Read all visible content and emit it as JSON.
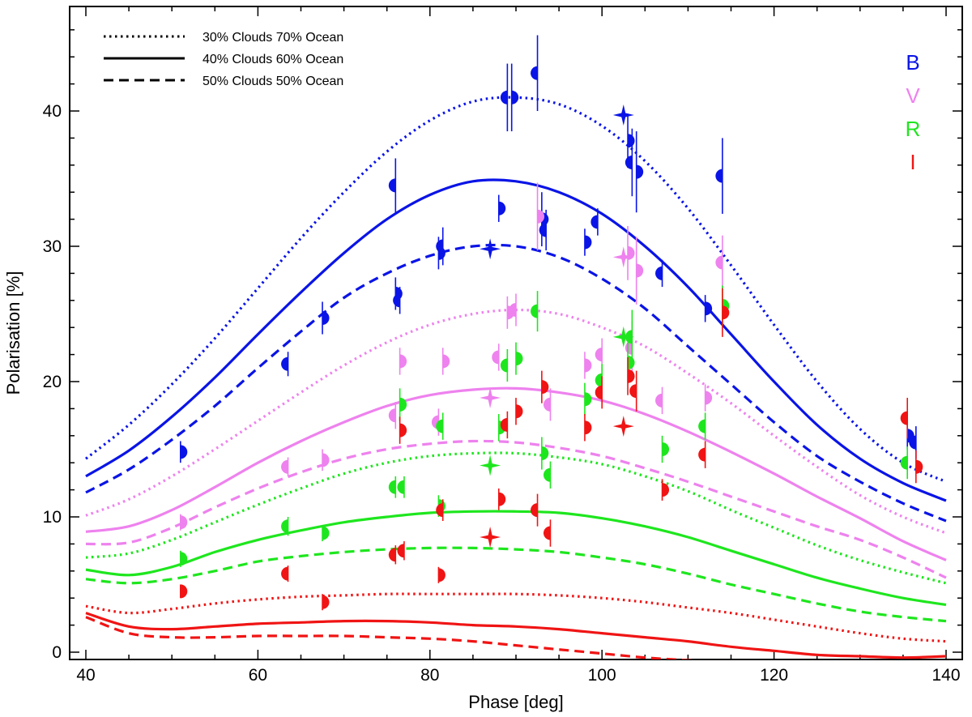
{
  "chart_data": {
    "type": "scatter",
    "xlabel": "Phase [deg]",
    "ylabel": "Polarisation [%]",
    "xlim": [
      38,
      142
    ],
    "ylim": [
      -0.5,
      47
    ],
    "xticks": [
      40,
      60,
      80,
      100,
      120,
      140
    ],
    "yticks": [
      0,
      10,
      20,
      30,
      40
    ],
    "legend": {
      "position": "top-left",
      "entries": [
        {
          "label": "30% Clouds 70% Ocean",
          "style": "dotted"
        },
        {
          "label": "40% Clouds 60% Ocean",
          "style": "solid"
        },
        {
          "label": "50% Clouds 50% Ocean",
          "style": "dashed"
        }
      ]
    },
    "bands": [
      {
        "name": "B",
        "color": "#0a14e6"
      },
      {
        "name": "V",
        "color": "#ee82ee"
      },
      {
        "name": "R",
        "color": "#1ee61e"
      },
      {
        "name": "I",
        "color": "#f01414"
      }
    ],
    "model_x": [
      40,
      45,
      50,
      55,
      60,
      65,
      70,
      75,
      80,
      85,
      90,
      95,
      100,
      105,
      110,
      115,
      120,
      125,
      130,
      135,
      140
    ],
    "models": [
      {
        "band": "B",
        "style": "dotted",
        "y": [
          14.3,
          16.8,
          19.8,
          23.2,
          26.9,
          30.6,
          34.0,
          37.0,
          39.3,
          40.7,
          41.0,
          40.5,
          38.9,
          36.3,
          32.8,
          28.6,
          24.2,
          20.0,
          16.5,
          14.0,
          12.6
        ]
      },
      {
        "band": "B",
        "style": "solid",
        "y": [
          13.0,
          14.9,
          17.4,
          20.3,
          23.5,
          26.6,
          29.5,
          32.0,
          33.8,
          34.8,
          34.8,
          34.0,
          32.4,
          30.0,
          27.0,
          23.5,
          20.0,
          16.8,
          14.3,
          12.5,
          11.2
        ]
      },
      {
        "band": "B",
        "style": "dashed",
        "y": [
          11.8,
          13.5,
          15.7,
          18.2,
          21.0,
          23.7,
          26.2,
          28.0,
          29.3,
          30.0,
          30.0,
          29.2,
          27.6,
          25.4,
          22.6,
          19.8,
          17.0,
          14.5,
          12.6,
          11.0,
          9.7
        ]
      },
      {
        "band": "V",
        "style": "dotted",
        "y": [
          10.1,
          11.3,
          13.0,
          15.0,
          17.1,
          19.2,
          21.2,
          22.9,
          24.2,
          25.0,
          25.3,
          25.0,
          24.0,
          22.6,
          20.6,
          18.4,
          16.0,
          13.7,
          11.6,
          10.0,
          8.8
        ]
      },
      {
        "band": "V",
        "style": "solid",
        "y": [
          8.9,
          9.3,
          10.5,
          12.2,
          14.0,
          15.6,
          17.0,
          18.2,
          19.0,
          19.4,
          19.5,
          19.2,
          18.6,
          17.6,
          16.3,
          14.8,
          13.2,
          11.5,
          9.9,
          8.2,
          6.8
        ]
      },
      {
        "band": "V",
        "style": "dashed",
        "y": [
          8.0,
          8.1,
          9.2,
          10.7,
          12.1,
          13.3,
          14.3,
          15.0,
          15.4,
          15.6,
          15.5,
          15.1,
          14.5,
          13.6,
          12.6,
          11.5,
          10.4,
          9.3,
          8.3,
          7.0,
          5.5
        ]
      },
      {
        "band": "R",
        "style": "dotted",
        "y": [
          7.0,
          7.3,
          8.3,
          9.6,
          10.9,
          12.1,
          13.2,
          14.0,
          14.5,
          14.7,
          14.7,
          14.4,
          13.9,
          13.0,
          11.9,
          10.5,
          9.2,
          7.9,
          6.8,
          5.9,
          5.1
        ]
      },
      {
        "band": "R",
        "style": "solid",
        "y": [
          6.1,
          5.7,
          6.3,
          7.4,
          8.3,
          9.0,
          9.6,
          10.0,
          10.3,
          10.4,
          10.4,
          10.3,
          9.9,
          9.3,
          8.5,
          7.5,
          6.5,
          5.5,
          4.7,
          4.0,
          3.5
        ]
      },
      {
        "band": "R",
        "style": "dashed",
        "y": [
          5.4,
          5.1,
          5.4,
          6.0,
          6.7,
          7.1,
          7.4,
          7.6,
          7.7,
          7.7,
          7.6,
          7.4,
          7.0,
          6.5,
          5.8,
          5.0,
          4.3,
          3.6,
          3.0,
          2.6,
          2.3
        ]
      },
      {
        "band": "I",
        "style": "dotted",
        "y": [
          3.4,
          2.9,
          3.2,
          3.6,
          3.9,
          4.1,
          4.2,
          4.3,
          4.3,
          4.3,
          4.3,
          4.2,
          4.0,
          3.7,
          3.3,
          2.9,
          2.4,
          1.9,
          1.4,
          1.0,
          0.8
        ]
      },
      {
        "band": "I",
        "style": "solid",
        "y": [
          2.9,
          1.9,
          1.7,
          1.9,
          2.1,
          2.2,
          2.3,
          2.3,
          2.2,
          2.0,
          1.9,
          1.7,
          1.4,
          1.1,
          0.8,
          0.4,
          0.1,
          -0.2,
          -0.3,
          -0.4,
          -0.3
        ]
      },
      {
        "band": "I",
        "style": "dashed",
        "y": [
          2.6,
          1.4,
          1.1,
          1.1,
          1.2,
          1.2,
          1.2,
          1.1,
          1.0,
          0.8,
          0.5,
          0.2,
          -0.1,
          -0.4,
          -0.6,
          -0.8,
          -0.9,
          -1.0,
          -1.0,
          -1.0,
          -1.0
        ]
      }
    ],
    "observations": [
      {
        "band": "B",
        "points": [
          [
            51,
            14.8,
            0.8
          ],
          [
            63.5,
            21.3,
            0.9
          ],
          [
            67.5,
            24.7,
            1.2
          ],
          [
            76,
            34.5,
            2.0
          ],
          [
            76,
            26.5,
            1.2
          ],
          [
            76.5,
            26.0,
            1.0
          ],
          [
            81,
            29.5,
            1.2
          ],
          [
            81.5,
            30.0,
            1.4
          ],
          [
            88,
            32.8,
            1.0
          ],
          [
            89,
            41.0,
            2.5
          ],
          [
            89.5,
            41.0,
            2.5
          ],
          [
            92.5,
            42.8,
            2.8
          ],
          [
            93,
            32.0,
            2.0
          ],
          [
            93.5,
            31.2,
            1.5
          ],
          [
            98,
            30.3,
            1.0
          ],
          [
            99.5,
            31.8,
            1.0
          ],
          [
            103,
            37.8,
            2.0
          ],
          [
            103.5,
            36.2,
            2.5
          ],
          [
            104,
            35.5,
            3.0
          ],
          [
            107,
            28.0,
            1.0
          ],
          [
            112,
            25.4,
            1.0
          ],
          [
            114,
            35.2,
            2.8
          ],
          [
            135.5,
            16.0,
            1.0
          ],
          [
            136.5,
            15.5,
            1.2
          ]
        ],
        "stars": [
          [
            87,
            29.8
          ],
          [
            102.5,
            39.7
          ]
        ]
      },
      {
        "band": "V",
        "points": [
          [
            51,
            9.6,
            0.6
          ],
          [
            63.5,
            13.7,
            0.7
          ],
          [
            67.5,
            14.2,
            0.8
          ],
          [
            76,
            17.5,
            1.0
          ],
          [
            76.5,
            21.5,
            1.0
          ],
          [
            81,
            17.0,
            1.0
          ],
          [
            81.5,
            21.5,
            1.0
          ],
          [
            88,
            21.8,
            1.0
          ],
          [
            89,
            25.1,
            1.2
          ],
          [
            90,
            25.3,
            1.2
          ],
          [
            92.5,
            32.2,
            2.5
          ],
          [
            94,
            18.3,
            1.2
          ],
          [
            98,
            21.2,
            1.0
          ],
          [
            100,
            22.0,
            1.2
          ],
          [
            103,
            29.5,
            2.0
          ],
          [
            103.5,
            22.5,
            2.0
          ],
          [
            104,
            28.2,
            2.5
          ],
          [
            107,
            18.6,
            1.0
          ],
          [
            112,
            18.8,
            1.0
          ],
          [
            114,
            28.8,
            2.0
          ]
        ],
        "stars": [
          [
            87,
            18.8
          ],
          [
            102.5,
            29.2
          ]
        ]
      },
      {
        "band": "R",
        "points": [
          [
            51,
            6.9,
            0.6
          ],
          [
            63.5,
            9.3,
            0.7
          ],
          [
            67.5,
            8.8,
            0.6
          ],
          [
            76,
            12.2,
            0.8
          ],
          [
            76.5,
            18.3,
            1.2
          ],
          [
            77,
            12.2,
            0.8
          ],
          [
            81,
            10.8,
            0.8
          ],
          [
            81.5,
            16.7,
            1.0
          ],
          [
            88,
            16.6,
            1.0
          ],
          [
            89,
            21.2,
            1.2
          ],
          [
            90,
            21.7,
            1.2
          ],
          [
            92.5,
            25.2,
            1.5
          ],
          [
            93,
            14.7,
            1.2
          ],
          [
            94,
            13.1,
            1.0
          ],
          [
            98,
            18.7,
            1.2
          ],
          [
            100,
            20.1,
            1.2
          ],
          [
            103,
            21.4,
            1.5
          ],
          [
            103.5,
            23.3,
            2.0
          ],
          [
            107,
            15.0,
            1.0
          ],
          [
            112,
            16.7,
            1.0
          ],
          [
            114,
            25.6,
            1.5
          ],
          [
            135.5,
            14.0,
            1.2
          ]
        ],
        "stars": [
          [
            87,
            13.8
          ],
          [
            102.5,
            23.3
          ]
        ]
      },
      {
        "band": "I",
        "points": [
          [
            51,
            4.5,
            0.5
          ],
          [
            63.5,
            5.8,
            0.6
          ],
          [
            67.5,
            3.7,
            0.6
          ],
          [
            76,
            7.2,
            0.7
          ],
          [
            76.5,
            16.4,
            1.0
          ],
          [
            77,
            7.5,
            0.7
          ],
          [
            81,
            5.7,
            0.6
          ],
          [
            81.5,
            10.5,
            0.8
          ],
          [
            88,
            11.3,
            0.8
          ],
          [
            89,
            16.8,
            1.0
          ],
          [
            90,
            17.8,
            1.0
          ],
          [
            92.5,
            10.5,
            1.2
          ],
          [
            93,
            19.6,
            1.2
          ],
          [
            94,
            8.8,
            1.0
          ],
          [
            98,
            16.6,
            1.0
          ],
          [
            100,
            19.2,
            1.2
          ],
          [
            103,
            20.4,
            1.4
          ],
          [
            104,
            19.3,
            1.5
          ],
          [
            107,
            12.0,
            0.8
          ],
          [
            112,
            14.6,
            1.0
          ],
          [
            114,
            25.1,
            1.8
          ],
          [
            135.5,
            17.3,
            1.5
          ],
          [
            136.5,
            13.7,
            1.2
          ]
        ],
        "stars": [
          [
            87,
            8.5
          ],
          [
            102.5,
            16.7
          ]
        ]
      }
    ]
  }
}
